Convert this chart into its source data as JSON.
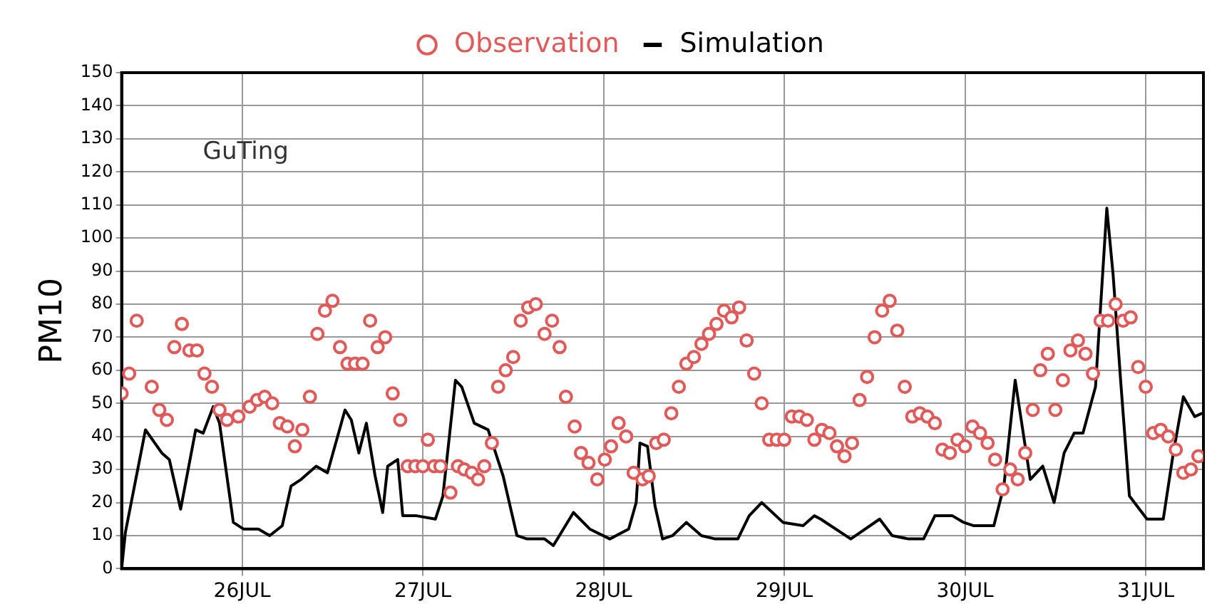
{
  "chart_data": {
    "type": "line",
    "ylabel": "PM10",
    "annotations": [
      "GuTing"
    ],
    "legend": "top",
    "grid": true,
    "xlim": [
      "--07-25T08:00",
      "--07-31T07:40"
    ],
    "xticks": [
      {
        "value": "--07-26",
        "label": "26JUL"
      },
      {
        "value": "--07-27",
        "label": "27JUL"
      },
      {
        "value": "--07-28",
        "label": "28JUL"
      },
      {
        "value": "--07-29",
        "label": "29JUL"
      },
      {
        "value": "--07-30",
        "label": "30JUL"
      },
      {
        "value": "--07-31",
        "label": "31JUL"
      }
    ],
    "ylim": [
      0,
      150
    ],
    "yticks": [
      0,
      10,
      20,
      30,
      40,
      50,
      60,
      70,
      80,
      90,
      100,
      110,
      120,
      130,
      140,
      150
    ],
    "series": [
      {
        "name": "Observation",
        "type": "scatter",
        "marker": "circle",
        "color": "#e05a5a",
        "x": [
          "--07-25T08:00",
          "--07-25T09:00",
          "--07-25T10:00",
          "--07-25T12:00",
          "--07-25T13:00",
          "--07-25T14:00",
          "--07-25T15:00",
          "--07-25T16:00",
          "--07-25T17:00",
          "--07-25T18:00",
          "--07-25T19:00",
          "--07-25T20:00",
          "--07-25T21:00",
          "--07-25T22:00",
          "--07-25T23:30",
          "--07-26T01:00",
          "--07-26T02:00",
          "--07-26T03:00",
          "--07-26T04:00",
          "--07-26T05:00",
          "--07-26T06:00",
          "--07-26T07:00",
          "--07-26T08:00",
          "--07-26T09:00",
          "--07-26T10:00",
          "--07-26T11:00",
          "--07-26T12:00",
          "--07-26T13:00",
          "--07-26T14:00",
          "--07-26T15:00",
          "--07-26T16:00",
          "--07-26T17:00",
          "--07-26T18:00",
          "--07-26T19:00",
          "--07-26T20:00",
          "--07-26T21:00",
          "--07-26T22:00",
          "--07-26T23:00",
          "--07-27T00:00",
          "--07-27T00:40",
          "--07-27T01:30",
          "--07-27T02:20",
          "--07-27T03:40",
          "--07-27T04:40",
          "--07-27T05:30",
          "--07-27T06:30",
          "--07-27T07:20",
          "--07-27T08:10",
          "--07-27T09:10",
          "--07-27T10:00",
          "--07-27T11:00",
          "--07-27T12:00",
          "--07-27T13:00",
          "--07-27T14:00",
          "--07-27T15:00",
          "--07-27T16:10",
          "--07-27T17:10",
          "--07-27T18:10",
          "--07-27T19:00",
          "--07-27T20:10",
          "--07-27T21:00",
          "--07-27T22:00",
          "--07-27T23:10",
          "--07-28T00:10",
          "--07-28T01:00",
          "--07-28T02:00",
          "--07-28T03:00",
          "--07-28T04:00",
          "--07-28T05:10",
          "--07-28T06:00",
          "--07-28T07:00",
          "--07-28T08:00",
          "--07-28T09:00",
          "--07-28T10:00",
          "--07-28T11:00",
          "--07-28T12:00",
          "--07-28T13:00",
          "--07-28T14:00",
          "--07-28T15:00",
          "--07-28T16:00",
          "--07-28T17:00",
          "--07-28T18:00",
          "--07-28T19:00",
          "--07-28T20:00",
          "--07-28T21:00",
          "--07-28T22:00",
          "--07-28T23:00",
          "--07-29T00:00",
          "--07-29T01:00",
          "--07-29T02:00",
          "--07-29T03:00",
          "--07-29T04:00",
          "--07-29T05:00",
          "--07-29T06:00",
          "--07-29T07:00",
          "--07-29T08:00",
          "--07-29T09:00",
          "--07-29T10:00",
          "--07-29T11:00",
          "--07-29T12:00",
          "--07-29T13:00",
          "--07-29T14:00",
          "--07-29T15:00",
          "--07-29T16:00",
          "--07-29T17:00",
          "--07-29T18:00",
          "--07-29T19:00",
          "--07-29T20:00",
          "--07-29T21:00",
          "--07-29T22:00",
          "--07-29T23:00",
          "--07-30T00:00",
          "--07-30T01:00",
          "--07-30T02:00",
          "--07-30T03:00",
          "--07-30T04:00",
          "--07-30T05:00",
          "--07-30T06:00",
          "--07-30T07:00",
          "--07-30T08:00",
          "--07-30T09:00",
          "--07-30T10:00",
          "--07-30T11:00",
          "--07-30T12:00",
          "--07-30T13:00",
          "--07-30T14:00",
          "--07-30T15:00",
          "--07-30T16:00",
          "--07-30T17:00",
          "--07-30T18:00",
          "--07-30T19:00",
          "--07-30T20:00",
          "--07-30T21:00",
          "--07-30T22:00",
          "--07-30T23:00",
          "--07-31T00:00",
          "--07-31T01:00",
          "--07-31T02:00",
          "--07-31T03:00",
          "--07-31T04:00",
          "--07-31T05:00",
          "--07-31T06:00",
          "--07-31T07:00"
        ],
        "values": [
          53,
          59,
          75,
          55,
          48,
          45,
          67,
          74,
          66,
          66,
          59,
          55,
          48,
          45,
          46,
          49,
          51,
          52,
          50,
          44,
          43,
          37,
          42,
          52,
          71,
          78,
          81,
          67,
          62,
          62,
          62,
          75,
          67,
          70,
          53,
          45,
          31,
          31,
          31,
          39,
          31,
          31,
          23,
          31,
          30,
          29,
          27,
          31,
          38,
          55,
          60,
          64,
          75,
          79,
          80,
          71,
          75,
          67,
          52,
          43,
          35,
          32,
          27,
          33,
          37,
          44,
          40,
          29,
          27,
          28,
          38,
          39,
          47,
          55,
          62,
          64,
          68,
          71,
          74,
          78,
          76,
          79,
          69,
          59,
          50,
          39,
          39,
          39,
          46,
          46,
          45,
          39,
          42,
          41,
          37,
          34,
          38,
          51,
          58,
          70,
          78,
          81,
          72,
          55,
          46,
          47,
          46,
          44,
          36,
          35,
          39,
          37,
          43,
          41,
          38,
          33,
          24,
          30,
          27,
          35,
          48,
          60,
          65,
          48,
          57,
          66,
          69,
          65,
          59,
          75,
          75,
          80,
          75,
          76,
          61,
          55,
          41,
          42,
          40,
          36,
          29,
          30,
          34
        ]
      },
      {
        "name": "Simulation",
        "type": "line",
        "marker": "none",
        "line_style": "solid",
        "color": "#000000",
        "x": [
          "--07-25T08:00",
          "--07-25T08:30",
          "--07-25T11:10",
          "--07-25T13:20",
          "--07-25T14:20",
          "--07-25T15:50",
          "--07-25T17:50",
          "--07-25T18:50",
          "--07-25T20:10",
          "--07-25T21:00",
          "--07-25T22:50",
          "--07-26T00:10",
          "--07-26T02:10",
          "--07-26T03:40",
          "--07-26T05:20",
          "--07-26T06:30",
          "--07-26T07:50",
          "--07-26T09:50",
          "--07-26T11:20",
          "--07-26T13:40",
          "--07-26T14:30",
          "--07-26T15:30",
          "--07-26T16:30",
          "--07-26T17:40",
          "--07-26T18:40",
          "--07-26T19:20",
          "--07-26T20:40",
          "--07-26T21:20",
          "--07-26T23:10",
          "--07-27T01:40",
          "--07-27T02:40",
          "--07-27T04:20",
          "--07-27T05:10",
          "--07-27T06:50",
          "--07-27T08:40",
          "--07-27T10:40",
          "--07-27T12:30",
          "--07-27T13:50",
          "--07-27T16:10",
          "--07-27T17:20",
          "--07-27T18:40",
          "--07-27T20:00",
          "--07-27T22:10",
          "--07-28T00:50",
          "--07-28T03:20",
          "--07-28T04:20",
          "--07-28T04:50",
          "--07-28T05:50",
          "--07-28T06:50",
          "--07-28T07:50",
          "--07-28T09:10",
          "--07-28T11:00",
          "--07-28T13:00",
          "--07-28T14:50",
          "--07-28T17:50",
          "--07-28T19:20",
          "--07-28T21:00",
          "--07-28T23:50",
          "--07-29T02:30",
          "--07-29T04:00",
          "--07-29T04:50",
          "--07-29T08:50",
          "--07-29T12:40",
          "--07-29T14:20",
          "--07-29T16:30",
          "--07-29T18:30",
          "--07-29T20:00",
          "--07-29T22:20",
          "--07-29T23:50",
          "--07-30T01:10",
          "--07-30T03:50",
          "--07-30T05:10",
          "--07-30T06:40",
          "--07-30T08:40",
          "--07-30T10:20",
          "--07-30T11:50",
          "--07-30T13:10",
          "--07-30T14:30",
          "--07-30T15:40",
          "--07-30T17:20",
          "--07-30T18:20",
          "--07-30T18:50",
          "--07-30T19:40",
          "--07-30T20:40",
          "--07-30T21:50",
          "--07-31T00:10",
          "--07-31T02:20",
          "--07-31T03:40",
          "--07-31T05:00",
          "--07-31T06:30",
          "--07-31T07:30"
        ],
        "values": [
          0,
          11,
          42,
          35,
          33,
          18,
          42,
          41,
          49,
          44,
          14,
          12,
          12,
          10,
          13,
          25,
          27,
          31,
          29,
          48,
          45,
          35,
          44,
          28,
          17,
          31,
          33,
          16,
          16,
          15,
          22,
          57,
          55,
          44,
          42,
          28,
          10,
          9,
          9,
          7,
          12,
          17,
          12,
          9,
          12,
          20,
          38,
          37,
          19,
          9,
          10,
          14,
          10,
          9,
          9,
          16,
          20,
          14,
          13,
          16,
          15,
          9,
          15,
          10,
          9,
          9,
          16,
          16,
          14,
          13,
          13,
          25,
          57,
          27,
          31,
          20,
          35,
          41,
          41,
          55,
          91,
          109,
          89,
          57,
          22,
          15,
          15,
          35,
          52,
          46,
          47
        ]
      }
    ]
  }
}
